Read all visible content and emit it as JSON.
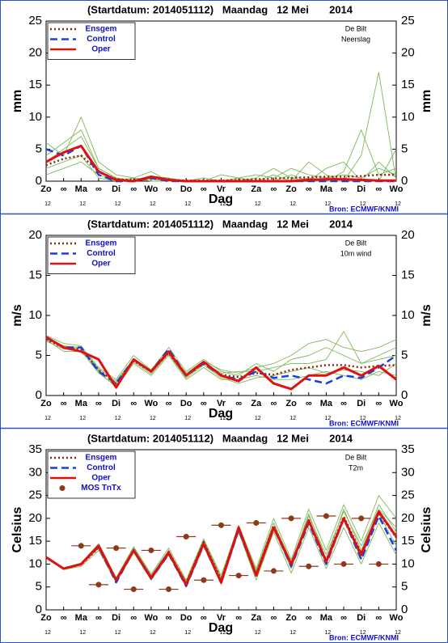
{
  "chart_data": [
    {
      "type": "line",
      "title": "(Startdatum: 2014051112)   Maandag   12 Mei       2014",
      "station": "De Bilt",
      "variable": "Neerslag",
      "ylabel": "mm",
      "xlabel": "Dag",
      "source": "Bron: ECMWF/KNMI",
      "categories": [
        "Zo",
        "∞",
        "Ma",
        "∞",
        "Di",
        "∞",
        "Wo",
        "∞",
        "Do",
        "∞",
        "Vr",
        "∞",
        "Za",
        "∞",
        "Zo",
        "∞",
        "Ma",
        "∞",
        "Di",
        "∞",
        "Wo"
      ],
      "hour_labels": [
        "12",
        null,
        "12",
        null,
        "12",
        null,
        "12",
        null,
        "12",
        null,
        "12",
        null,
        "12",
        null,
        "12",
        null,
        "12",
        null,
        "12",
        null,
        "12"
      ],
      "ylim": [
        0,
        25
      ],
      "yticks": [
        0,
        5,
        10,
        15,
        20,
        25
      ],
      "legend": "upper left",
      "members_color": "#7fb85a",
      "members": [
        [
          3,
          5,
          7,
          2,
          0.5,
          0,
          0.8,
          0.5,
          0,
          0,
          0,
          0.5,
          1,
          0.5,
          2,
          1,
          0.5,
          1,
          0.5,
          2,
          1
        ],
        [
          6,
          4,
          10,
          3,
          1,
          0.5,
          1.5,
          0,
          0,
          0.5,
          0,
          0,
          0,
          1,
          0,
          3,
          1,
          0,
          4,
          17,
          0
        ],
        [
          2,
          3,
          4,
          0.5,
          0,
          0,
          0.3,
          0,
          0,
          0,
          1,
          0.5,
          0,
          0,
          1,
          0,
          2,
          3,
          0,
          0,
          5
        ],
        [
          4,
          6,
          8,
          2,
          0.5,
          0,
          0.5,
          0.2,
          0,
          0,
          0,
          0,
          0.5,
          2,
          0.5,
          0,
          0,
          1.5,
          8,
          1,
          2
        ],
        [
          1,
          2,
          3,
          1,
          0,
          0.5,
          0,
          0,
          0,
          0,
          0,
          0,
          0,
          0,
          0,
          0.5,
          0,
          0,
          0,
          3,
          0.5
        ]
      ],
      "series": [
        {
          "name": "Ensgem",
          "color": "#8b2a0a",
          "style": "dotted",
          "values": [
            2.5,
            3.5,
            4,
            1.5,
            0.3,
            0.2,
            0.5,
            0.2,
            0.1,
            0.1,
            0.1,
            0.2,
            0.3,
            0.4,
            0.5,
            0.6,
            0.7,
            0.7,
            0.8,
            1,
            1
          ]
        },
        {
          "name": "Control",
          "color": "#1a3fe0",
          "style": "dashed",
          "values": [
            5,
            4,
            5.5,
            1,
            0,
            0,
            0.5,
            0,
            0,
            0,
            0,
            0,
            0,
            0,
            0,
            0,
            0,
            0,
            0,
            0,
            0
          ]
        },
        {
          "name": "Oper",
          "color": "#e01010",
          "style": "solid",
          "values": [
            3,
            4.5,
            5.5,
            1.5,
            0.2,
            0,
            0.7,
            0.2,
            0,
            0,
            0,
            0,
            0,
            0,
            0,
            0.2,
            0.3,
            0.3,
            0.2,
            0.1,
            0.1
          ]
        }
      ]
    },
    {
      "type": "line",
      "title": "(Startdatum: 2014051112)   Maandag   12 Mei       2014",
      "station": "De Bilt",
      "variable": "10m wind",
      "ylabel": "m/s",
      "xlabel": "Dag",
      "source": "Bron: ECMWF/KNMI",
      "categories": [
        "Zo",
        "∞",
        "Ma",
        "∞",
        "Di",
        "∞",
        "Wo",
        "∞",
        "Do",
        "∞",
        "Vr",
        "∞",
        "Za",
        "∞",
        "Zo",
        "∞",
        "Ma",
        "∞",
        "Di",
        "∞",
        "Wo"
      ],
      "hour_labels": [
        "12",
        null,
        "12",
        null,
        "12",
        null,
        "12",
        null,
        "12",
        null,
        "12",
        null,
        "12",
        null,
        "12",
        null,
        "12",
        null,
        "12",
        null,
        "12"
      ],
      "ylim": [
        0,
        20
      ],
      "yticks": [
        0,
        5,
        10,
        15,
        20
      ],
      "legend": "upper left",
      "members_color": "#7fb85a",
      "members": [
        [
          7.5,
          6.5,
          6.2,
          3.5,
          2,
          5,
          3.2,
          6,
          3,
          4.5,
          3,
          2.5,
          4,
          3,
          4.5,
          5,
          6,
          5,
          4,
          4.5,
          5
        ],
        [
          7,
          5.5,
          5.5,
          3,
          1,
          4,
          2.5,
          5,
          2,
          3.5,
          2,
          2,
          2.5,
          2,
          2,
          2.5,
          3,
          2.5,
          2,
          3,
          2.5
        ],
        [
          7.3,
          6.2,
          6,
          3.3,
          1.8,
          4.6,
          3.1,
          5.5,
          2.8,
          4.3,
          3.2,
          2.8,
          3.5,
          4,
          5,
          6.5,
          7,
          6,
          5.5,
          6,
          7
        ],
        [
          6.8,
          5.8,
          5.6,
          2.8,
          1.2,
          4.2,
          2.7,
          5.2,
          2.2,
          3.8,
          2.2,
          1.5,
          2.2,
          2.5,
          3,
          3.5,
          2.8,
          3.2,
          3,
          2.5,
          4
        ],
        [
          7.2,
          6,
          5.9,
          3.1,
          1.6,
          4.4,
          2.9,
          5.4,
          2.6,
          4.1,
          2.8,
          3,
          3,
          3.5,
          4,
          4,
          4.5,
          8,
          4,
          5,
          6
        ]
      ],
      "series": [
        {
          "name": "Ensgem",
          "color": "#8b2a0a",
          "style": "dotted",
          "values": [
            7,
            6,
            5.8,
            3.2,
            1.5,
            4.3,
            3,
            5.3,
            2.5,
            4,
            2.6,
            2.3,
            2.8,
            2.6,
            3.2,
            3.5,
            3.8,
            3.8,
            3.5,
            3.7,
            3.8
          ]
        },
        {
          "name": "Control",
          "color": "#1a3fe0",
          "style": "dashed",
          "values": [
            7.2,
            6,
            6,
            3,
            1.5,
            4.5,
            3,
            5.8,
            2.5,
            4,
            2.5,
            2,
            3,
            2.2,
            2.5,
            2,
            1.5,
            2.5,
            2.2,
            3.5,
            5
          ]
        },
        {
          "name": "Oper",
          "color": "#e01010",
          "style": "solid",
          "values": [
            7.3,
            6,
            5.5,
            4.5,
            1,
            4.5,
            3,
            5.5,
            2.5,
            4.2,
            2.5,
            1.8,
            3.5,
            1.5,
            0.8,
            2.5,
            2.5,
            3.5,
            2.5,
            3.7,
            2
          ]
        }
      ]
    },
    {
      "type": "line",
      "title": "(Startdatum: 2014051112)   Maandag   12 Mei       2014",
      "station": "De Bilt",
      "variable": "T2m",
      "ylabel": "Celsius",
      "xlabel": "Dag",
      "source": "Bron: ECMWF/KNMI",
      "categories": [
        "Zo",
        "∞",
        "Ma",
        "∞",
        "Di",
        "∞",
        "Wo",
        "∞",
        "Do",
        "∞",
        "Vr",
        "∞",
        "Za",
        "∞",
        "Zo",
        "∞",
        "Ma",
        "∞",
        "Di",
        "∞",
        "Wo"
      ],
      "hour_labels": [
        "12",
        null,
        "12",
        null,
        "12",
        null,
        "12",
        null,
        "12",
        null,
        "12",
        null,
        "12",
        null,
        "12",
        null,
        "12",
        null,
        "12",
        null,
        "12"
      ],
      "ylim": [
        0,
        35
      ],
      "yticks": [
        0,
        5,
        10,
        15,
        20,
        25,
        30,
        35
      ],
      "legend": "upper left",
      "members_color": "#7fb85a",
      "members": [
        [
          11.5,
          9,
          10,
          14,
          6.5,
          13.5,
          7.5,
          13,
          6,
          15,
          7,
          18,
          8,
          19,
          10,
          21,
          11,
          22,
          13,
          23,
          17
        ],
        [
          11.3,
          8.8,
          9.5,
          13,
          6,
          12.5,
          6.5,
          12,
          5,
          14,
          5.5,
          17,
          6.5,
          17,
          8,
          18,
          9,
          18,
          10,
          19,
          12
        ],
        [
          11.6,
          9.2,
          10.2,
          14.5,
          7,
          13.8,
          7.8,
          13.5,
          6.5,
          15.5,
          7.5,
          18.5,
          9,
          20,
          11,
          22,
          13,
          23,
          15,
          25,
          20
        ],
        [
          11.4,
          9,
          9.8,
          13.5,
          6.3,
          13,
          7,
          12.5,
          5.8,
          14.8,
          6.5,
          17.5,
          7.5,
          18,
          9,
          19.5,
          10,
          20,
          11,
          21,
          14
        ],
        [
          11.5,
          9.1,
          10,
          13.8,
          6.8,
          13.2,
          7.2,
          12.8,
          6.2,
          15.2,
          7,
          18.2,
          8.5,
          19,
          10.5,
          20.5,
          12,
          21.5,
          14,
          22,
          18
        ]
      ],
      "series": [
        {
          "name": "Ensgem",
          "color": "#8b2a0a",
          "style": "dotted",
          "values": [
            11.4,
            9,
            9.9,
            13.6,
            6.5,
            13.1,
            7,
            12.7,
            5.8,
            14.8,
            6.6,
            17.8,
            7.8,
            18.4,
            9.8,
            19.6,
            10.8,
            20.4,
            12.4,
            21.2,
            15.8
          ]
        },
        {
          "name": "Control",
          "color": "#1a3fe0",
          "style": "dashed",
          "values": [
            11.5,
            9,
            10,
            13.8,
            6,
            13,
            6.8,
            12.2,
            5.2,
            14.2,
            6,
            17.5,
            7.5,
            18,
            9.5,
            19,
            10,
            20,
            11,
            20.5,
            13
          ]
        },
        {
          "name": "Oper",
          "color": "#e01010",
          "style": "solid",
          "values": [
            11.5,
            9,
            10,
            14,
            6.5,
            13,
            7,
            12.5,
            5.5,
            14.5,
            6,
            18,
            7.5,
            18,
            10,
            19.5,
            10.5,
            20,
            12,
            21.5,
            16
          ]
        },
        {
          "name": "MOS TnTx",
          "color": "#8b3a1a",
          "style": "marker",
          "values": [
            null,
            null,
            14,
            5.5,
            13.5,
            4.5,
            13,
            4.5,
            16,
            6.5,
            18.5,
            7.5,
            19,
            8.5,
            20,
            9.5,
            20.5,
            10,
            20,
            10,
            null
          ]
        }
      ]
    }
  ]
}
